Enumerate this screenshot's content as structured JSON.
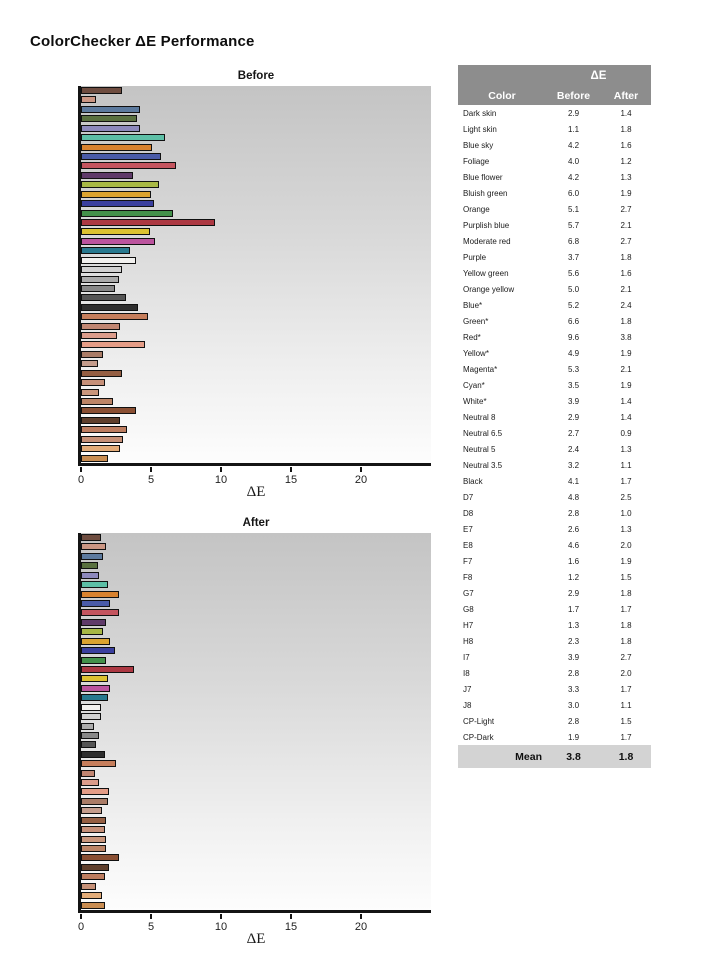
{
  "page_title": "ColorChecker ΔE Performance",
  "charts": [
    {
      "key": "before",
      "title": "Before",
      "xlabel": "ΔE"
    },
    {
      "key": "after",
      "title": "After",
      "xlabel": "ΔE"
    }
  ],
  "axis": {
    "ticks": [
      "0",
      "5",
      "10",
      "15",
      "20"
    ],
    "tick_values": [
      0,
      5,
      10,
      15,
      20
    ],
    "max": 25
  },
  "table": {
    "group_header": "ΔE",
    "columns": [
      "Color",
      "Before",
      "After"
    ],
    "mean_label": "Mean",
    "mean_before": "3.8",
    "mean_after": "1.8",
    "rows": [
      {
        "name": "Dark skin",
        "before": "2.9",
        "after": "1.4"
      },
      {
        "name": "Light skin",
        "before": "1.1",
        "after": "1.8"
      },
      {
        "name": "Blue sky",
        "before": "4.2",
        "after": "1.6"
      },
      {
        "name": "Foliage",
        "before": "4.0",
        "after": "1.2"
      },
      {
        "name": "Blue flower",
        "before": "4.2",
        "after": "1.3"
      },
      {
        "name": "Bluish green",
        "before": "6.0",
        "after": "1.9"
      },
      {
        "name": "Orange",
        "before": "5.1",
        "after": "2.7"
      },
      {
        "name": "Purplish blue",
        "before": "5.7",
        "after": "2.1"
      },
      {
        "name": "Moderate red",
        "before": "6.8",
        "after": "2.7"
      },
      {
        "name": "Purple",
        "before": "3.7",
        "after": "1.8"
      },
      {
        "name": "Yellow green",
        "before": "5.6",
        "after": "1.6"
      },
      {
        "name": "Orange yellow",
        "before": "5.0",
        "after": "2.1"
      },
      {
        "name": "Blue*",
        "before": "5.2",
        "after": "2.4"
      },
      {
        "name": "Green*",
        "before": "6.6",
        "after": "1.8"
      },
      {
        "name": "Red*",
        "before": "9.6",
        "after": "3.8"
      },
      {
        "name": "Yellow*",
        "before": "4.9",
        "after": "1.9"
      },
      {
        "name": "Magenta*",
        "before": "5.3",
        "after": "2.1"
      },
      {
        "name": "Cyan*",
        "before": "3.5",
        "after": "1.9"
      },
      {
        "name": "White*",
        "before": "3.9",
        "after": "1.4"
      },
      {
        "name": "Neutral 8",
        "before": "2.9",
        "after": "1.4"
      },
      {
        "name": "Neutral 6.5",
        "before": "2.7",
        "after": "0.9"
      },
      {
        "name": "Neutral 5",
        "before": "2.4",
        "after": "1.3"
      },
      {
        "name": "Neutral 3.5",
        "before": "3.2",
        "after": "1.1"
      },
      {
        "name": "Black",
        "before": "4.1",
        "after": "1.7"
      },
      {
        "name": "D7",
        "before": "4.8",
        "after": "2.5"
      },
      {
        "name": "D8",
        "before": "2.8",
        "after": "1.0"
      },
      {
        "name": "E7",
        "before": "2.6",
        "after": "1.3"
      },
      {
        "name": "E8",
        "before": "4.6",
        "after": "2.0"
      },
      {
        "name": "F7",
        "before": "1.6",
        "after": "1.9"
      },
      {
        "name": "F8",
        "before": "1.2",
        "after": "1.5"
      },
      {
        "name": "G7",
        "before": "2.9",
        "after": "1.8"
      },
      {
        "name": "G8",
        "before": "1.7",
        "after": "1.7"
      },
      {
        "name": "H7",
        "before": "1.3",
        "after": "1.8"
      },
      {
        "name": "H8",
        "before": "2.3",
        "after": "1.8"
      },
      {
        "name": "I7",
        "before": "3.9",
        "after": "2.7"
      },
      {
        "name": "I8",
        "before": "2.8",
        "after": "2.0"
      },
      {
        "name": "J7",
        "before": "3.3",
        "after": "1.7"
      },
      {
        "name": "J8",
        "before": "3.0",
        "after": "1.1"
      },
      {
        "name": "CP-Light",
        "before": "2.8",
        "after": "1.5"
      },
      {
        "name": "CP-Dark",
        "before": "1.9",
        "after": "1.7"
      }
    ]
  },
  "chart_data": {
    "type": "bar",
    "orientation": "horizontal",
    "title": "ColorChecker ΔE Performance",
    "xlabel": "ΔE",
    "xlim": [
      0,
      25
    ],
    "xticks": [
      0,
      5,
      10,
      15,
      20
    ],
    "legend": "none",
    "grid": false,
    "background": "vertical gray gradient #c4c4c4 to #fdfdfd",
    "categories": [
      "Dark skin",
      "Light skin",
      "Blue sky",
      "Foliage",
      "Blue flower",
      "Bluish green",
      "Orange",
      "Purplish blue",
      "Moderate red",
      "Purple",
      "Yellow green",
      "Orange yellow",
      "Blue*",
      "Green*",
      "Red*",
      "Yellow*",
      "Magenta*",
      "Cyan*",
      "White*",
      "Neutral 8",
      "Neutral 6.5",
      "Neutral 5",
      "Neutral 3.5",
      "Black",
      "D7",
      "D8",
      "E7",
      "E8",
      "F7",
      "F8",
      "G7",
      "G8",
      "H7",
      "H8",
      "I7",
      "I8",
      "J7",
      "J8",
      "CP-Light",
      "CP-Dark"
    ],
    "series": [
      {
        "name": "Before",
        "values": [
          2.9,
          1.1,
          4.2,
          4.0,
          4.2,
          6.0,
          5.1,
          5.7,
          6.8,
          3.7,
          5.6,
          5.0,
          5.2,
          6.6,
          9.6,
          4.9,
          5.3,
          3.5,
          3.9,
          2.9,
          2.7,
          2.4,
          3.2,
          4.1,
          4.8,
          2.8,
          2.6,
          4.6,
          1.6,
          1.2,
          2.9,
          1.7,
          1.3,
          2.3,
          3.9,
          2.8,
          3.3,
          3.0,
          2.8,
          1.9
        ]
      },
      {
        "name": "After",
        "values": [
          1.4,
          1.8,
          1.6,
          1.2,
          1.3,
          1.9,
          2.7,
          2.1,
          2.7,
          1.8,
          1.6,
          2.1,
          2.4,
          1.8,
          3.8,
          1.9,
          2.1,
          1.9,
          1.4,
          1.4,
          0.9,
          1.3,
          1.1,
          1.7,
          2.5,
          1.0,
          1.3,
          2.0,
          1.9,
          1.5,
          1.8,
          1.7,
          1.8,
          1.8,
          2.7,
          2.0,
          1.7,
          1.1,
          1.5,
          1.7
        ]
      }
    ],
    "bar_colors": [
      "#6e4c3f",
      "#cb9683",
      "#5c7a9e",
      "#59703f",
      "#8d89bd",
      "#5dbfa6",
      "#d8822f",
      "#4a5ba8",
      "#c4555f",
      "#5f3a69",
      "#a8b845",
      "#dba330",
      "#3a3f9e",
      "#43914a",
      "#ac3842",
      "#ddc231",
      "#bb549e",
      "#28798f",
      "#f2f1ef",
      "#d2d2d2",
      "#ababab",
      "#888888",
      "#555555",
      "#2e2e2e",
      "#c67e5c",
      "#c18672",
      "#dc9c8b",
      "#e59d87",
      "#aa7c67",
      "#c49c8c",
      "#955f43",
      "#c69079",
      "#c9967c",
      "#bc8466",
      "#8a4f33",
      "#5f3f2c",
      "#bd7d60",
      "#c69077",
      "#e3ac79",
      "#c98d52"
    ],
    "mean": {
      "Before": 3.8,
      "After": 1.8
    }
  },
  "colors": {
    "table_header_bg": "#8d8d8d",
    "table_header_text": "#ffffff",
    "mean_row_bg": "#d3d3d3",
    "axis_color": "#141414",
    "plot_gradient_top": "#c4c4c4",
    "plot_gradient_bottom": "#fdfdfd"
  }
}
